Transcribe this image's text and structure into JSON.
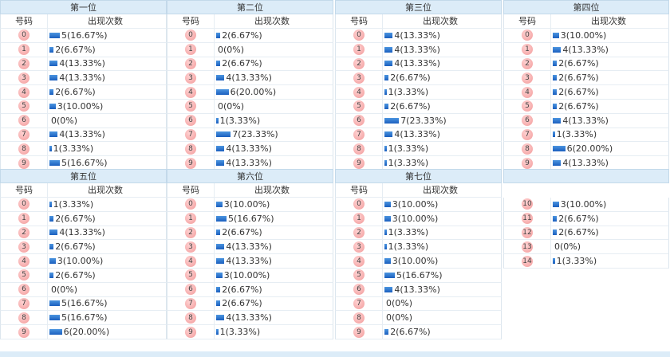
{
  "panels": [
    {
      "title": "第一位",
      "col_num": "号码",
      "col_count": "出现次数",
      "rows": [
        {
          "n": "0",
          "c": 5,
          "t": "5(16.67%)"
        },
        {
          "n": "1",
          "c": 2,
          "t": "2(6.67%)"
        },
        {
          "n": "2",
          "c": 4,
          "t": "4(13.33%)"
        },
        {
          "n": "3",
          "c": 4,
          "t": "4(13.33%)"
        },
        {
          "n": "4",
          "c": 2,
          "t": "2(6.67%)"
        },
        {
          "n": "5",
          "c": 3,
          "t": "3(10.00%)"
        },
        {
          "n": "6",
          "c": 0,
          "t": "0(0%)"
        },
        {
          "n": "7",
          "c": 4,
          "t": "4(13.33%)"
        },
        {
          "n": "8",
          "c": 1,
          "t": "1(3.33%)"
        },
        {
          "n": "9",
          "c": 5,
          "t": "5(16.67%)"
        }
      ]
    },
    {
      "title": "第二位",
      "col_num": "号码",
      "col_count": "出现次数",
      "rows": [
        {
          "n": "0",
          "c": 2,
          "t": "2(6.67%)"
        },
        {
          "n": "1",
          "c": 0,
          "t": "0(0%)"
        },
        {
          "n": "2",
          "c": 2,
          "t": "2(6.67%)"
        },
        {
          "n": "3",
          "c": 4,
          "t": "4(13.33%)"
        },
        {
          "n": "4",
          "c": 6,
          "t": "6(20.00%)"
        },
        {
          "n": "5",
          "c": 0,
          "t": "0(0%)"
        },
        {
          "n": "6",
          "c": 1,
          "t": "1(3.33%)"
        },
        {
          "n": "7",
          "c": 7,
          "t": "7(23.33%)"
        },
        {
          "n": "8",
          "c": 4,
          "t": "4(13.33%)"
        },
        {
          "n": "9",
          "c": 4,
          "t": "4(13.33%)"
        }
      ]
    },
    {
      "title": "第三位",
      "col_num": "号码",
      "col_count": "出现次数",
      "rows": [
        {
          "n": "0",
          "c": 4,
          "t": "4(13.33%)"
        },
        {
          "n": "1",
          "c": 4,
          "t": "4(13.33%)"
        },
        {
          "n": "2",
          "c": 4,
          "t": "4(13.33%)"
        },
        {
          "n": "3",
          "c": 2,
          "t": "2(6.67%)"
        },
        {
          "n": "4",
          "c": 1,
          "t": "1(3.33%)"
        },
        {
          "n": "5",
          "c": 2,
          "t": "2(6.67%)"
        },
        {
          "n": "6",
          "c": 7,
          "t": "7(23.33%)"
        },
        {
          "n": "7",
          "c": 4,
          "t": "4(13.33%)"
        },
        {
          "n": "8",
          "c": 1,
          "t": "1(3.33%)"
        },
        {
          "n": "9",
          "c": 1,
          "t": "1(3.33%)"
        }
      ]
    },
    {
      "title": "第四位",
      "col_num": "号码",
      "col_count": "出现次数",
      "rows": [
        {
          "n": "0",
          "c": 3,
          "t": "3(10.00%)"
        },
        {
          "n": "1",
          "c": 4,
          "t": "4(13.33%)"
        },
        {
          "n": "2",
          "c": 2,
          "t": "2(6.67%)"
        },
        {
          "n": "3",
          "c": 2,
          "t": "2(6.67%)"
        },
        {
          "n": "4",
          "c": 2,
          "t": "2(6.67%)"
        },
        {
          "n": "5",
          "c": 2,
          "t": "2(6.67%)"
        },
        {
          "n": "6",
          "c": 4,
          "t": "4(13.33%)"
        },
        {
          "n": "7",
          "c": 1,
          "t": "1(3.33%)"
        },
        {
          "n": "8",
          "c": 6,
          "t": "6(20.00%)"
        },
        {
          "n": "9",
          "c": 4,
          "t": "4(13.33%)"
        }
      ]
    },
    {
      "title": "第五位",
      "col_num": "号码",
      "col_count": "出现次数",
      "rows": [
        {
          "n": "0",
          "c": 1,
          "t": "1(3.33%)"
        },
        {
          "n": "1",
          "c": 2,
          "t": "2(6.67%)"
        },
        {
          "n": "2",
          "c": 4,
          "t": "4(13.33%)"
        },
        {
          "n": "3",
          "c": 2,
          "t": "2(6.67%)"
        },
        {
          "n": "4",
          "c": 3,
          "t": "3(10.00%)"
        },
        {
          "n": "5",
          "c": 2,
          "t": "2(6.67%)"
        },
        {
          "n": "6",
          "c": 0,
          "t": "0(0%)"
        },
        {
          "n": "7",
          "c": 5,
          "t": "5(16.67%)"
        },
        {
          "n": "8",
          "c": 5,
          "t": "5(16.67%)"
        },
        {
          "n": "9",
          "c": 6,
          "t": "6(20.00%)"
        }
      ]
    },
    {
      "title": "第六位",
      "col_num": "号码",
      "col_count": "出现次数",
      "rows": [
        {
          "n": "0",
          "c": 3,
          "t": "3(10.00%)"
        },
        {
          "n": "1",
          "c": 5,
          "t": "5(16.67%)"
        },
        {
          "n": "2",
          "c": 2,
          "t": "2(6.67%)"
        },
        {
          "n": "3",
          "c": 4,
          "t": "4(13.33%)"
        },
        {
          "n": "4",
          "c": 4,
          "t": "4(13.33%)"
        },
        {
          "n": "5",
          "c": 3,
          "t": "3(10.00%)"
        },
        {
          "n": "6",
          "c": 2,
          "t": "2(6.67%)"
        },
        {
          "n": "7",
          "c": 2,
          "t": "2(6.67%)"
        },
        {
          "n": "8",
          "c": 4,
          "t": "4(13.33%)"
        },
        {
          "n": "9",
          "c": 1,
          "t": "1(3.33%)"
        }
      ]
    },
    {
      "title": "第七位",
      "col_num": "号码",
      "col_count": "出现次数",
      "rows": [
        {
          "n": "0",
          "c": 3,
          "t": "3(10.00%)"
        },
        {
          "n": "1",
          "c": 3,
          "t": "3(10.00%)"
        },
        {
          "n": "2",
          "c": 1,
          "t": "1(3.33%)"
        },
        {
          "n": "3",
          "c": 1,
          "t": "1(3.33%)"
        },
        {
          "n": "4",
          "c": 3,
          "t": "3(10.00%)"
        },
        {
          "n": "5",
          "c": 5,
          "t": "5(16.67%)"
        },
        {
          "n": "6",
          "c": 4,
          "t": "4(13.33%)"
        },
        {
          "n": "7",
          "c": 0,
          "t": "0(0%)"
        },
        {
          "n": "8",
          "c": 0,
          "t": "0(0%)"
        },
        {
          "n": "9",
          "c": 2,
          "t": "2(6.67%)"
        }
      ]
    },
    {
      "title": "",
      "col_num": "",
      "col_count": "",
      "rows": [
        {
          "n": "10",
          "c": 3,
          "t": "3(10.00%)"
        },
        {
          "n": "11",
          "c": 2,
          "t": "2(6.67%)"
        },
        {
          "n": "12",
          "c": 2,
          "t": "2(6.67%)"
        },
        {
          "n": "13",
          "c": 0,
          "t": "0(0%)"
        },
        {
          "n": "14",
          "c": 1,
          "t": "1(3.33%)"
        }
      ]
    }
  ]
}
